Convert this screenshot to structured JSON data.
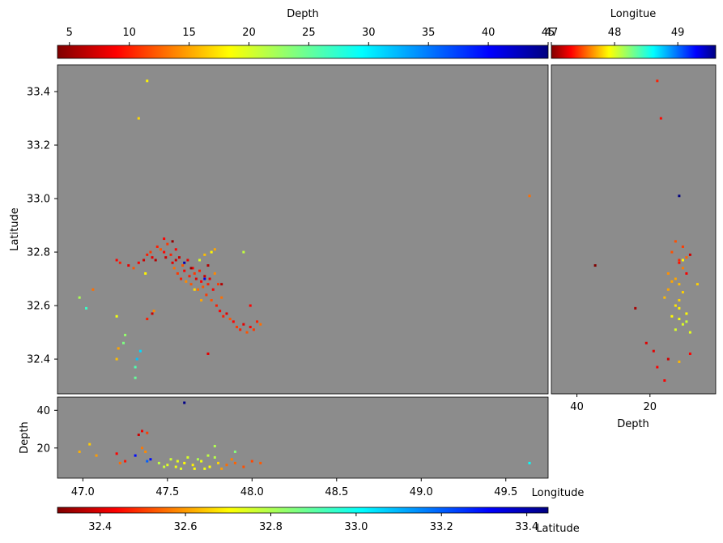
{
  "chart_data": [
    {
      "type": "scatter",
      "panel": "map",
      "ylabel": "Latitude",
      "xlim": [
        46.85,
        49.75
      ],
      "ylim": [
        32.27,
        33.5
      ],
      "yticks": [
        "32.4",
        "32.6",
        "32.8",
        "33.0",
        "33.2",
        "33.4"
      ],
      "ytick_values": [
        32.4,
        32.6,
        32.8,
        33.0,
        33.2,
        33.4
      ],
      "background": "#8c8c8c",
      "colorscale": "jet_r",
      "color_by": "Depth",
      "points": [
        [
          47.2,
          32.77,
          9
        ],
        [
          47.22,
          32.76,
          10
        ],
        [
          47.27,
          32.75,
          8
        ],
        [
          47.3,
          32.74,
          12
        ],
        [
          47.33,
          32.76,
          9
        ],
        [
          47.36,
          32.77,
          7
        ],
        [
          47.38,
          32.79,
          10
        ],
        [
          47.4,
          32.8,
          11
        ],
        [
          47.41,
          32.78,
          8
        ],
        [
          47.43,
          32.77,
          6
        ],
        [
          47.44,
          32.82,
          10
        ],
        [
          47.46,
          32.81,
          12
        ],
        [
          47.48,
          32.8,
          9
        ],
        [
          47.49,
          32.78,
          7
        ],
        [
          47.5,
          32.83,
          11
        ],
        [
          47.52,
          32.79,
          10
        ],
        [
          47.53,
          32.76,
          8
        ],
        [
          47.54,
          32.74,
          13
        ],
        [
          47.55,
          32.81,
          9
        ],
        [
          47.56,
          32.72,
          11
        ],
        [
          47.57,
          32.78,
          7
        ],
        [
          47.58,
          32.7,
          10
        ],
        [
          47.59,
          32.75,
          12
        ],
        [
          47.6,
          32.73,
          9
        ],
        [
          47.61,
          32.69,
          14
        ],
        [
          47.62,
          32.77,
          8
        ],
        [
          47.63,
          32.71,
          10
        ],
        [
          47.64,
          32.68,
          12
        ],
        [
          47.65,
          32.74,
          9
        ],
        [
          47.66,
          32.72,
          11
        ],
        [
          47.67,
          32.7,
          8
        ],
        [
          47.68,
          32.66,
          13
        ],
        [
          47.69,
          32.73,
          10
        ],
        [
          47.7,
          32.69,
          9
        ],
        [
          47.71,
          32.67,
          12
        ],
        [
          47.72,
          32.71,
          7
        ],
        [
          47.73,
          32.64,
          11
        ],
        [
          47.74,
          32.68,
          10
        ],
        [
          47.75,
          32.7,
          8
        ],
        [
          47.76,
          32.62,
          12
        ],
        [
          47.77,
          32.66,
          9
        ],
        [
          47.78,
          32.72,
          14
        ],
        [
          47.79,
          32.6,
          10
        ],
        [
          47.8,
          32.68,
          11
        ],
        [
          47.81,
          32.58,
          9
        ],
        [
          47.82,
          32.63,
          13
        ],
        [
          47.83,
          32.56,
          10
        ],
        [
          47.85,
          32.57,
          8
        ],
        [
          47.87,
          32.55,
          12
        ],
        [
          47.89,
          32.54,
          9
        ],
        [
          47.91,
          32.52,
          11
        ],
        [
          47.93,
          32.51,
          10
        ],
        [
          47.95,
          32.53,
          8
        ],
        [
          47.97,
          32.5,
          12
        ],
        [
          47.99,
          32.52,
          9
        ],
        [
          48.01,
          32.51,
          11
        ],
        [
          48.03,
          32.54,
          10
        ],
        [
          48.05,
          32.53,
          13
        ],
        [
          47.78,
          32.81,
          15
        ],
        [
          47.76,
          32.8,
          18
        ],
        [
          47.72,
          32.79,
          16
        ],
        [
          47.69,
          32.77,
          20
        ],
        [
          47.66,
          32.66,
          17
        ],
        [
          47.7,
          32.62,
          15
        ],
        [
          47.55,
          32.77,
          7
        ],
        [
          47.48,
          32.85,
          9
        ],
        [
          47.53,
          32.84,
          5
        ],
        [
          47.64,
          32.74,
          5
        ],
        [
          47.82,
          32.68,
          6
        ],
        [
          47.74,
          32.75,
          6
        ],
        [
          47.99,
          32.6,
          9
        ],
        [
          47.95,
          32.8,
          21
        ],
        [
          47.41,
          32.57,
          7
        ],
        [
          47.38,
          32.55,
          10
        ],
        [
          47.42,
          32.58,
          14
        ],
        [
          47.37,
          32.72,
          18
        ],
        [
          47.74,
          32.42,
          8
        ],
        [
          47.06,
          32.66,
          13
        ],
        [
          46.98,
          32.63,
          22
        ],
        [
          47.02,
          32.59,
          27
        ],
        [
          47.2,
          32.56,
          19
        ],
        [
          47.25,
          32.49,
          23
        ],
        [
          47.24,
          32.46,
          24
        ],
        [
          47.21,
          32.44,
          15
        ],
        [
          47.2,
          32.4,
          16
        ],
        [
          47.32,
          32.4,
          32
        ],
        [
          47.34,
          32.43,
          31
        ],
        [
          47.31,
          32.37,
          26
        ],
        [
          47.31,
          32.33,
          25
        ],
        [
          47.33,
          33.3,
          17
        ],
        [
          47.38,
          33.44,
          18
        ],
        [
          49.64,
          33.01,
          13
        ],
        [
          47.6,
          32.76,
          43
        ],
        [
          47.72,
          32.7,
          41
        ]
      ]
    },
    {
      "type": "scatter",
      "panel": "depth-latitude",
      "xlabel": "Depth",
      "xlim": [
        47,
        2
      ],
      "xticks": [
        "40",
        "20"
      ],
      "xtick_values": [
        40,
        20
      ],
      "ylim": [
        32.27,
        33.5
      ],
      "background": "#8c8c8c",
      "colorscale": "jet_r",
      "color_by": "Longitue",
      "points": [
        [
          12,
          32.77,
          47.4
        ],
        [
          14,
          32.8,
          47.5
        ],
        [
          11,
          32.74,
          47.6
        ],
        [
          13,
          32.7,
          47.7
        ],
        [
          10,
          32.78,
          47.55
        ],
        [
          12,
          32.68,
          47.75
        ],
        [
          15,
          32.72,
          47.65
        ],
        [
          11,
          32.65,
          47.8
        ],
        [
          13,
          32.6,
          47.85
        ],
        [
          12,
          32.62,
          47.8
        ],
        [
          10,
          32.57,
          47.9
        ],
        [
          12,
          32.55,
          47.95
        ],
        [
          11,
          32.53,
          48.0
        ],
        [
          13,
          32.51,
          48.02
        ],
        [
          9,
          32.5,
          47.98
        ],
        [
          14,
          32.56,
          47.9
        ],
        [
          11,
          32.82,
          47.45
        ],
        [
          12,
          32.76,
          47.35
        ],
        [
          10,
          32.72,
          47.3
        ],
        [
          15,
          32.66,
          47.7
        ],
        [
          16,
          32.63,
          47.75
        ],
        [
          9,
          32.79,
          47.2
        ],
        [
          13,
          32.84,
          47.5
        ],
        [
          12,
          32.59,
          47.88
        ],
        [
          10,
          32.54,
          48.05
        ],
        [
          35,
          32.75,
          47.0
        ],
        [
          24,
          32.59,
          47.1
        ],
        [
          15,
          32.4,
          47.2
        ],
        [
          19,
          32.43,
          47.25
        ],
        [
          21,
          32.46,
          47.24
        ],
        [
          18,
          32.37,
          47.31
        ],
        [
          16,
          32.32,
          47.31
        ],
        [
          17,
          33.3,
          47.33
        ],
        [
          18,
          33.44,
          47.38
        ],
        [
          12,
          33.01,
          49.64
        ],
        [
          12,
          32.39,
          47.74
        ],
        [
          9,
          32.42,
          47.32
        ],
        [
          11,
          32.77,
          47.9
        ],
        [
          14,
          32.69,
          47.7
        ],
        [
          7,
          32.68,
          47.8
        ]
      ]
    },
    {
      "type": "scatter",
      "panel": "longitude-depth",
      "xlabel": "Longitude",
      "ylabel": "Depth",
      "xlim": [
        46.85,
        49.75
      ],
      "xticks": [
        "47.0",
        "47.5",
        "48.0",
        "48.5",
        "49.0",
        "49.5"
      ],
      "xtick_values": [
        47.0,
        47.5,
        48.0,
        48.5,
        49.0,
        49.5
      ],
      "ylim": [
        4,
        47
      ],
      "yticks": [
        "20",
        "40"
      ],
      "ytick_values": [
        20,
        40
      ],
      "background": "#8c8c8c",
      "colorscale": "jet_r",
      "color_by": "Latitude",
      "points": [
        [
          47.45,
          12,
          32.78
        ],
        [
          47.5,
          11,
          32.74
        ],
        [
          47.55,
          10,
          32.72
        ],
        [
          47.6,
          12,
          32.7
        ],
        [
          47.65,
          11,
          32.69
        ],
        [
          47.7,
          13,
          32.72
        ],
        [
          47.75,
          10,
          32.7
        ],
        [
          47.8,
          12,
          32.66
        ],
        [
          47.85,
          11,
          32.55
        ],
        [
          47.9,
          12,
          32.54
        ],
        [
          47.95,
          10,
          32.52
        ],
        [
          48.0,
          13,
          32.51
        ],
        [
          48.05,
          12,
          32.53
        ],
        [
          47.52,
          14,
          32.76
        ],
        [
          47.58,
          9,
          32.74
        ],
        [
          47.62,
          15,
          32.75
        ],
        [
          47.68,
          14,
          32.8
        ],
        [
          47.72,
          9,
          32.72
        ],
        [
          47.78,
          15,
          32.79
        ],
        [
          47.82,
          9,
          32.6
        ],
        [
          47.88,
          14,
          32.57
        ],
        [
          47.48,
          10,
          32.77
        ],
        [
          47.56,
          13,
          32.73
        ],
        [
          47.66,
          9,
          32.7
        ],
        [
          47.74,
          16,
          32.78
        ],
        [
          47.35,
          29,
          32.42
        ],
        [
          47.33,
          27,
          32.38
        ],
        [
          47.38,
          28,
          32.5
        ],
        [
          47.35,
          20,
          32.56
        ],
        [
          47.37,
          18,
          32.58
        ],
        [
          47.2,
          17,
          32.44
        ],
        [
          47.25,
          13,
          32.46
        ],
        [
          47.22,
          12,
          32.55
        ],
        [
          47.08,
          16,
          32.6
        ],
        [
          46.98,
          18,
          32.62
        ],
        [
          47.04,
          22,
          32.65
        ],
        [
          47.4,
          14,
          33.3
        ],
        [
          47.6,
          44,
          33.44
        ],
        [
          47.78,
          21,
          32.8
        ],
        [
          47.9,
          18,
          32.85
        ],
        [
          49.64,
          12,
          33.01
        ],
        [
          47.38,
          13,
          33.2
        ],
        [
          47.31,
          16,
          33.3
        ]
      ]
    },
    {
      "type": "colorbar",
      "label": "Depth",
      "range": [
        4,
        45
      ],
      "ticks": [
        "5",
        "10",
        "15",
        "20",
        "25",
        "30",
        "35",
        "40",
        "45"
      ],
      "tick_values": [
        5,
        10,
        15,
        20,
        25,
        30,
        35,
        40,
        45
      ]
    },
    {
      "type": "colorbar",
      "label": "Longitue",
      "range": [
        47,
        49.6
      ],
      "ticks": [
        "47",
        "48",
        "49"
      ],
      "tick_values": [
        47,
        48,
        49
      ]
    },
    {
      "type": "colorbar",
      "label": "Latitude",
      "range": [
        32.3,
        33.45
      ],
      "ticks": [
        "32.4",
        "32.6",
        "32.8",
        "33.0",
        "33.2",
        "33.4"
      ],
      "tick_values": [
        32.4,
        32.6,
        32.8,
        33.0,
        33.2,
        33.4
      ]
    }
  ]
}
